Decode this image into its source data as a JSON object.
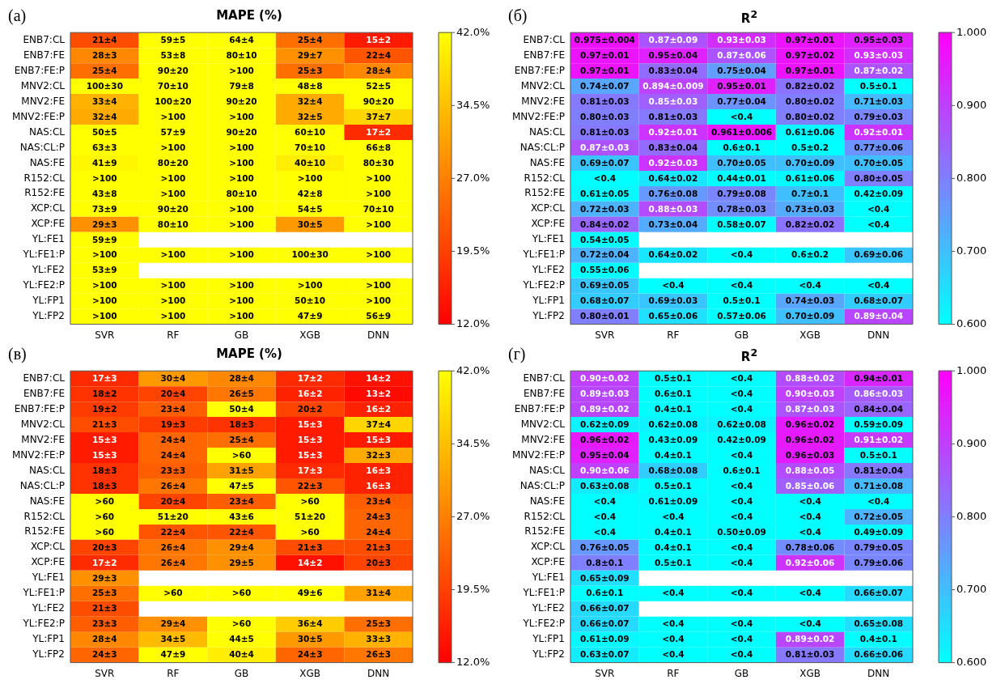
{
  "chart_data": [
    {
      "type": "heatmap",
      "title": "MAPE (%)",
      "annotations": [
        "(а)"
      ],
      "categories": [
        "SVR",
        "RF",
        "GB",
        "XGB",
        "DNN"
      ],
      "y_categories": [
        "ENB7:CL",
        "ENB7:FE",
        "ENB7:FE:P",
        "MNV2:CL",
        "MNV2:FE",
        "MNV2:FE:P",
        "NAS:CL",
        "NAS:CL:P",
        "NAS:FE",
        "R152:CL",
        "R152:FE",
        "XCP:CL",
        "XCP:FE",
        "YL:FE1",
        "YL:FE1:P",
        "YL:FE2",
        "YL:FE2:P",
        "YL:FP1",
        "YL:FP2"
      ],
      "cells": [
        [
          21,
          59,
          64,
          25,
          15
        ],
        [
          28,
          53,
          80,
          29,
          22
        ],
        [
          25,
          90,
          100,
          25,
          28
        ],
        [
          100,
          70,
          79,
          48,
          52
        ],
        [
          33,
          100,
          90,
          32,
          90
        ],
        [
          32,
          100,
          100,
          32,
          37
        ],
        [
          50,
          57,
          90,
          60,
          17
        ],
        [
          63,
          100,
          100,
          70,
          66
        ],
        [
          41,
          80,
          100,
          40,
          80
        ],
        [
          100,
          100,
          100,
          100,
          100
        ],
        [
          43,
          100,
          80,
          42,
          100
        ],
        [
          73,
          90,
          100,
          54,
          70
        ],
        [
          29,
          80,
          100,
          30,
          100
        ],
        [
          59,
          null,
          null,
          null,
          null
        ],
        [
          100,
          100,
          100,
          100,
          100
        ],
        [
          53,
          null,
          null,
          null,
          null
        ],
        [
          100,
          100,
          100,
          100,
          100
        ],
        [
          100,
          100,
          100,
          50,
          100
        ],
        [
          100,
          100,
          100,
          47,
          56
        ]
      ],
      "cell_labels": [
        [
          "21±4",
          "59±5",
          "64±4",
          "25±4",
          "15±2"
        ],
        [
          "28±3",
          "53±8",
          "80±10",
          "29±7",
          "22±4"
        ],
        [
          "25±4",
          "90±20",
          ">100",
          "25±3",
          "28±4"
        ],
        [
          "100±30",
          "70±10",
          "79±8",
          "48±8",
          "52±5"
        ],
        [
          "33±4",
          "100±20",
          "90±20",
          "32±4",
          "90±20"
        ],
        [
          "32±4",
          ">100",
          ">100",
          "32±5",
          "37±7"
        ],
        [
          "50±5",
          "57±9",
          "90±20",
          "60±10",
          "17±2"
        ],
        [
          "63±3",
          ">100",
          ">100",
          "70±10",
          "66±8"
        ],
        [
          "41±9",
          "80±20",
          ">100",
          "40±10",
          "80±30"
        ],
        [
          ">100",
          ">100",
          ">100",
          ">100",
          ">100"
        ],
        [
          "43±8",
          ">100",
          "80±10",
          "42±8",
          ">100"
        ],
        [
          "73±9",
          "90±20",
          ">100",
          "54±5",
          "70±10"
        ],
        [
          "29±3",
          "80±10",
          ">100",
          "30±5",
          ">100"
        ],
        [
          "59±9",
          null,
          null,
          null,
          null
        ],
        [
          ">100",
          ">100",
          ">100",
          "100±30",
          ">100"
        ],
        [
          "53±9",
          null,
          null,
          null,
          null
        ],
        [
          ">100",
          ">100",
          ">100",
          ">100",
          ">100"
        ],
        [
          ">100",
          ">100",
          ">100",
          "50±10",
          ">100"
        ],
        [
          ">100",
          ">100",
          ">100",
          "47±9",
          "56±9"
        ]
      ],
      "clim": [
        12,
        42
      ],
      "cticks": [
        {
          "value": 12,
          "label": "12.0%"
        },
        {
          "value": 19.5,
          "label": "19.5%"
        },
        {
          "value": 27,
          "label": "27.0%"
        },
        {
          "value": 34.5,
          "label": "34.5%"
        },
        {
          "value": 42,
          "label": "42.0%"
        }
      ],
      "colors": [
        "#ff0000",
        "#ffff00"
      ]
    },
    {
      "type": "heatmap",
      "title": "R$^{2}$",
      "annotations": [
        "(б)"
      ],
      "categories": [
        "SVR",
        "RF",
        "GB",
        "XGB",
        "DNN"
      ],
      "y_categories": [
        "ENB7:CL",
        "ENB7:FE",
        "ENB7:FE:P",
        "MNV2:CL",
        "MNV2:FE",
        "MNV2:FE:P",
        "NAS:CL",
        "NAS:CL:P",
        "NAS:FE",
        "R152:CL",
        "R152:FE",
        "XCP:CL",
        "XCP:FE",
        "YL:FE1",
        "YL:FE1:P",
        "YL:FE2",
        "YL:FE2:P",
        "YL:FP1",
        "YL:FP2"
      ],
      "cells": [
        [
          0.975,
          0.87,
          0.93,
          0.97,
          0.95
        ],
        [
          0.97,
          0.95,
          0.87,
          0.97,
          0.93
        ],
        [
          0.97,
          0.83,
          0.75,
          0.97,
          0.87
        ],
        [
          0.74,
          0.894,
          0.95,
          0.82,
          0.5
        ],
        [
          0.81,
          0.85,
          0.77,
          0.8,
          0.71
        ],
        [
          0.8,
          0.81,
          0.4,
          0.8,
          0.79
        ],
        [
          0.81,
          0.92,
          0.961,
          0.61,
          0.92
        ],
        [
          0.87,
          0.83,
          0.6,
          0.5,
          0.77
        ],
        [
          0.69,
          0.92,
          0.7,
          0.7,
          0.7
        ],
        [
          0.4,
          0.64,
          0.44,
          0.61,
          0.8
        ],
        [
          0.61,
          0.76,
          0.79,
          0.7,
          0.42
        ],
        [
          0.72,
          0.88,
          0.78,
          0.73,
          0.4
        ],
        [
          0.84,
          0.73,
          0.58,
          0.82,
          0.4
        ],
        [
          0.54,
          null,
          null,
          null,
          null
        ],
        [
          0.72,
          0.64,
          0.4,
          0.6,
          0.69
        ],
        [
          0.55,
          null,
          null,
          null,
          null
        ],
        [
          0.69,
          0.4,
          0.4,
          0.4,
          0.4
        ],
        [
          0.68,
          0.69,
          0.5,
          0.74,
          0.68
        ],
        [
          0.8,
          0.65,
          0.57,
          0.7,
          0.89
        ]
      ],
      "cell_labels": [
        [
          "0.975±0.004",
          "0.87±0.09",
          "0.93±0.03",
          "0.97±0.01",
          "0.95±0.03"
        ],
        [
          "0.97±0.01",
          "0.95±0.04",
          "0.87±0.06",
          "0.97±0.02",
          "0.93±0.03"
        ],
        [
          "0.97±0.01",
          "0.83±0.04",
          "0.75±0.04",
          "0.97±0.01",
          "0.87±0.02"
        ],
        [
          "0.74±0.07",
          "0.894±0.009",
          "0.95±0.01",
          "0.82±0.02",
          "0.5±0.1"
        ],
        [
          "0.81±0.03",
          "0.85±0.03",
          "0.77±0.04",
          "0.80±0.02",
          "0.71±0.03"
        ],
        [
          "0.80±0.03",
          "0.81±0.03",
          "<0.4",
          "0.80±0.02",
          "0.79±0.03"
        ],
        [
          "0.81±0.03",
          "0.92±0.01",
          "0.961±0.006",
          "0.61±0.06",
          "0.92±0.01"
        ],
        [
          "0.87±0.03",
          "0.83±0.04",
          "0.6±0.1",
          "0.5±0.2",
          "0.77±0.06"
        ],
        [
          "0.69±0.07",
          "0.92±0.03",
          "0.70±0.05",
          "0.70±0.09",
          "0.70±0.05"
        ],
        [
          "<0.4",
          "0.64±0.02",
          "0.44±0.01",
          "0.61±0.06",
          "0.80±0.05"
        ],
        [
          "0.61±0.05",
          "0.76±0.08",
          "0.79±0.08",
          "0.7±0.1",
          "0.42±0.09"
        ],
        [
          "0.72±0.03",
          "0.88±0.03",
          "0.78±0.03",
          "0.73±0.03",
          "<0.4"
        ],
        [
          "0.84±0.02",
          "0.73±0.04",
          "0.58±0.07",
          "0.82±0.02",
          "<0.4"
        ],
        [
          "0.54±0.05",
          null,
          null,
          null,
          null
        ],
        [
          "0.72±0.04",
          "0.64±0.02",
          "<0.4",
          "0.6±0.2",
          "0.69±0.06"
        ],
        [
          "0.55±0.06",
          null,
          null,
          null,
          null
        ],
        [
          "0.69±0.05",
          "<0.4",
          "<0.4",
          "<0.4",
          "<0.4"
        ],
        [
          "0.68±0.07",
          "0.69±0.03",
          "0.5±0.1",
          "0.74±0.03",
          "0.68±0.07"
        ],
        [
          "0.80±0.01",
          "0.65±0.06",
          "0.57±0.06",
          "0.70±0.09",
          "0.89±0.04"
        ]
      ],
      "clim": [
        0.6,
        1
      ],
      "cticks": [
        {
          "value": 0.6,
          "label": "0.600"
        },
        {
          "value": 0.7,
          "label": "0.700"
        },
        {
          "value": 0.8,
          "label": "0.800"
        },
        {
          "value": 0.9,
          "label": "0.900"
        },
        {
          "value": 1,
          "label": "1.000"
        }
      ],
      "colors": [
        "#00ffff",
        "#ff00ff"
      ]
    },
    {
      "type": "heatmap",
      "title": "MAPE (%)",
      "annotations": [
        "(в)"
      ],
      "categories": [
        "SVR",
        "RF",
        "GB",
        "XGB",
        "DNN"
      ],
      "y_categories": [
        "ENB7:CL",
        "ENB7:FE",
        "ENB7:FE:P",
        "MNV2:CL",
        "MNV2:FE",
        "MNV2:FE:P",
        "NAS:CL",
        "NAS:CL:P",
        "NAS:FE",
        "R152:CL",
        "R152:FE",
        "XCP:CL",
        "XCP:FE",
        "YL:FE1",
        "YL:FE1:P",
        "YL:FE2",
        "YL:FE2:P",
        "YL:FP1",
        "YL:FP2"
      ],
      "cells": [
        [
          17,
          30,
          28,
          17,
          14
        ],
        [
          18,
          20,
          26,
          16,
          13
        ],
        [
          19,
          23,
          50,
          20,
          16
        ],
        [
          21,
          19,
          18,
          15,
          37
        ],
        [
          15,
          24,
          25,
          15,
          15
        ],
        [
          15,
          24,
          60,
          15,
          32
        ],
        [
          18,
          23,
          31,
          17,
          16
        ],
        [
          18,
          26,
          47,
          22,
          16
        ],
        [
          60,
          20,
          23,
          60,
          23
        ],
        [
          60,
          51,
          43,
          51,
          24
        ],
        [
          60,
          22,
          22,
          60,
          24
        ],
        [
          20,
          26,
          29,
          21,
          21
        ],
        [
          17,
          26,
          29,
          14,
          20
        ],
        [
          29,
          null,
          null,
          null,
          null
        ],
        [
          25,
          60,
          60,
          49,
          31
        ],
        [
          21,
          null,
          null,
          null,
          null
        ],
        [
          23,
          29,
          60,
          36,
          25
        ],
        [
          28,
          34,
          44,
          30,
          33
        ],
        [
          24,
          47,
          40,
          24,
          26
        ]
      ],
      "cell_labels": [
        [
          "17±3",
          "30±4",
          "28±4",
          "17±2",
          "14±2"
        ],
        [
          "18±2",
          "20±4",
          "26±5",
          "16±2",
          "13±2"
        ],
        [
          "19±2",
          "23±4",
          "50±4",
          "20±2",
          "16±2"
        ],
        [
          "21±3",
          "19±3",
          "18±3",
          "15±3",
          "37±4"
        ],
        [
          "15±3",
          "24±4",
          "25±4",
          "15±3",
          "15±3"
        ],
        [
          "15±3",
          "24±4",
          ">60",
          "15±3",
          "32±3"
        ],
        [
          "18±3",
          "23±3",
          "31±5",
          "17±3",
          "16±3"
        ],
        [
          "18±3",
          "26±4",
          "47±5",
          "22±3",
          "16±3"
        ],
        [
          ">60",
          "20±4",
          "23±4",
          ">60",
          "23±4"
        ],
        [
          ">60",
          "51±20",
          "43±6",
          "51±20",
          "24±3"
        ],
        [
          ">60",
          "22±4",
          "22±4",
          ">60",
          "24±4"
        ],
        [
          "20±3",
          "26±4",
          "29±4",
          "21±3",
          "21±3"
        ],
        [
          "17±2",
          "26±4",
          "29±5",
          "14±2",
          "20±3"
        ],
        [
          "29±3",
          null,
          null,
          null,
          null
        ],
        [
          "25±3",
          ">60",
          ">60",
          "49±6",
          "31±4"
        ],
        [
          "21±3",
          null,
          null,
          null,
          null
        ],
        [
          "23±3",
          "29±4",
          ">60",
          "36±4",
          "25±3"
        ],
        [
          "28±4",
          "34±5",
          "44±5",
          "30±5",
          "33±3"
        ],
        [
          "24±3",
          "47±9",
          "40±4",
          "24±3",
          "26±3"
        ]
      ],
      "clim": [
        12,
        42
      ],
      "cticks": [
        {
          "value": 12,
          "label": "12.0%"
        },
        {
          "value": 19.5,
          "label": "19.5%"
        },
        {
          "value": 27,
          "label": "27.0%"
        },
        {
          "value": 34.5,
          "label": "34.5%"
        },
        {
          "value": 42,
          "label": "42.0%"
        }
      ],
      "colors": [
        "#ff0000",
        "#ffff00"
      ]
    },
    {
      "type": "heatmap",
      "title": "R$^{2}$",
      "annotations": [
        "(г)"
      ],
      "categories": [
        "SVR",
        "RF",
        "GB",
        "XGB",
        "DNN"
      ],
      "y_categories": [
        "ENB7:CL",
        "ENB7:FE",
        "ENB7:FE:P",
        "MNV2:CL",
        "MNV2:FE",
        "MNV2:FE:P",
        "NAS:CL",
        "NAS:CL:P",
        "NAS:FE",
        "R152:CL",
        "R152:FE",
        "XCP:CL",
        "XCP:FE",
        "YL:FE1",
        "YL:FE1:P",
        "YL:FE2",
        "YL:FE2:P",
        "YL:FP1",
        "YL:FP2"
      ],
      "cells": [
        [
          0.9,
          0.5,
          0.4,
          0.88,
          0.94
        ],
        [
          0.89,
          0.6,
          0.4,
          0.9,
          0.86
        ],
        [
          0.89,
          0.4,
          0.4,
          0.87,
          0.84
        ],
        [
          0.62,
          0.62,
          0.62,
          0.96,
          0.59
        ],
        [
          0.96,
          0.43,
          0.42,
          0.96,
          0.91
        ],
        [
          0.95,
          0.4,
          0.4,
          0.96,
          0.5
        ],
        [
          0.9,
          0.68,
          0.6,
          0.88,
          0.81
        ],
        [
          0.63,
          0.5,
          0.4,
          0.85,
          0.71
        ],
        [
          0.4,
          0.61,
          0.4,
          0.4,
          0.4
        ],
        [
          0.4,
          0.4,
          0.4,
          0.4,
          0.72
        ],
        [
          0.4,
          0.4,
          0.5,
          0.4,
          0.49
        ],
        [
          0.76,
          0.4,
          0.4,
          0.78,
          0.79
        ],
        [
          0.8,
          0.5,
          0.4,
          0.92,
          0.79
        ],
        [
          0.65,
          null,
          null,
          null,
          null
        ],
        [
          0.6,
          0.4,
          0.4,
          0.4,
          0.66
        ],
        [
          0.66,
          null,
          null,
          null,
          null
        ],
        [
          0.66,
          0.4,
          0.4,
          0.4,
          0.65
        ],
        [
          0.61,
          0.4,
          0.4,
          0.89,
          0.4
        ],
        [
          0.63,
          0.4,
          0.4,
          0.81,
          0.66
        ]
      ],
      "cell_labels": [
        [
          "0.90±0.02",
          "0.5±0.1",
          "<0.4",
          "0.88±0.02",
          "0.94±0.01"
        ],
        [
          "0.89±0.03",
          "0.6±0.1",
          "<0.4",
          "0.90±0.03",
          "0.86±0.03"
        ],
        [
          "0.89±0.02",
          "0.4±0.1",
          "<0.4",
          "0.87±0.03",
          "0.84±0.04"
        ],
        [
          "0.62±0.09",
          "0.62±0.08",
          "0.62±0.08",
          "0.96±0.02",
          "0.59±0.09"
        ],
        [
          "0.96±0.02",
          "0.43±0.09",
          "0.42±0.09",
          "0.96±0.02",
          "0.91±0.02"
        ],
        [
          "0.95±0.04",
          "0.4±0.1",
          "<0.4",
          "0.96±0.03",
          "0.5±0.1"
        ],
        [
          "0.90±0.06",
          "0.68±0.08",
          "0.6±0.1",
          "0.88±0.05",
          "0.81±0.04"
        ],
        [
          "0.63±0.08",
          "0.5±0.1",
          "<0.4",
          "0.85±0.06",
          "0.71±0.08"
        ],
        [
          "<0.4",
          "0.61±0.09",
          "<0.4",
          "<0.4",
          "<0.4"
        ],
        [
          "<0.4",
          "<0.4",
          "<0.4",
          "<0.4",
          "0.72±0.05"
        ],
        [
          "<0.4",
          "0.4±0.1",
          "0.50±0.09",
          "<0.4",
          "0.49±0.09"
        ],
        [
          "0.76±0.05",
          "0.4±0.1",
          "<0.4",
          "0.78±0.06",
          "0.79±0.05"
        ],
        [
          "0.8±0.1",
          "0.5±0.1",
          "<0.4",
          "0.92±0.06",
          "0.79±0.06"
        ],
        [
          "0.65±0.09",
          null,
          null,
          null,
          null
        ],
        [
          "0.6±0.1",
          "<0.4",
          "<0.4",
          "<0.4",
          "0.66±0.07"
        ],
        [
          "0.66±0.07",
          null,
          null,
          null,
          null
        ],
        [
          "0.66±0.07",
          "<0.4",
          "<0.4",
          "<0.4",
          "0.65±0.08"
        ],
        [
          "0.61±0.09",
          "<0.4",
          "<0.4",
          "0.89±0.02",
          "0.4±0.1"
        ],
        [
          "0.63±0.07",
          "<0.4",
          "<0.4",
          "0.81±0.03",
          "0.66±0.06"
        ]
      ],
      "clim": [
        0.6,
        1
      ],
      "cticks": [
        {
          "value": 0.6,
          "label": "0.600"
        },
        {
          "value": 0.7,
          "label": "0.700"
        },
        {
          "value": 0.8,
          "label": "0.800"
        },
        {
          "value": 0.9,
          "label": "0.900"
        },
        {
          "value": 1,
          "label": "1.000"
        }
      ],
      "colors": [
        "#00ffff",
        "#ff00ff"
      ]
    }
  ]
}
